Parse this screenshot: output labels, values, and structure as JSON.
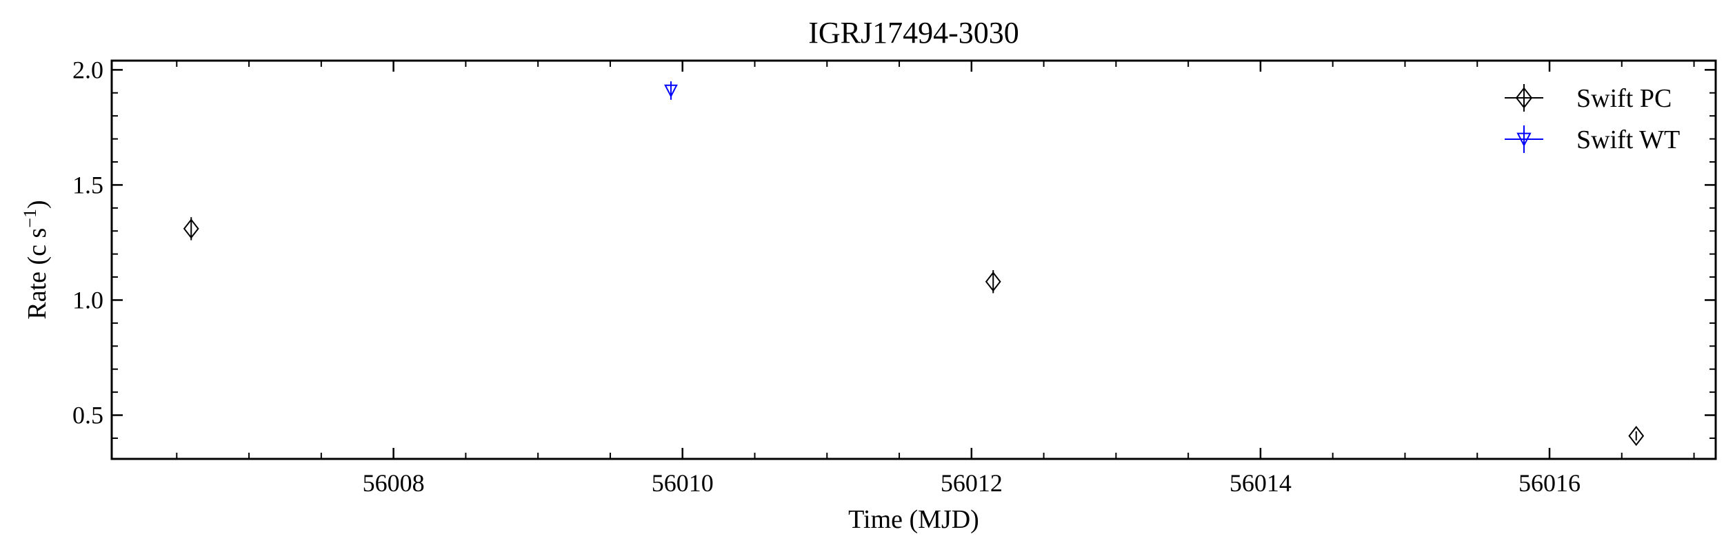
{
  "chart_data": {
    "type": "scatter",
    "title": "IGRJ17494-3030",
    "xlabel": "Time (MJD)",
    "ylabel_main": "Rate (c s",
    "ylabel_sup": "−1",
    "ylabel_close": ")",
    "xlim": [
      56006.05,
      56017.15
    ],
    "ylim": [
      0.31,
      2.04
    ],
    "x_ticks": [
      56008,
      56010,
      56012,
      56014,
      56016
    ],
    "x_tick_labels": [
      "56008",
      "56010",
      "56012",
      "56014",
      "56016"
    ],
    "y_ticks": [
      0.5,
      1.0,
      1.5,
      2.0
    ],
    "y_tick_labels": [
      "0.5",
      "1.0",
      "1.5",
      "2.0"
    ],
    "legend_position": "top-right",
    "series": [
      {
        "name": "Swift PC",
        "marker": "diamond",
        "color": "#000000",
        "points": [
          {
            "x": 56006.6,
            "y": 1.31,
            "yerr": 0.05
          },
          {
            "x": 56012.15,
            "y": 1.08,
            "yerr": 0.05
          },
          {
            "x": 56016.6,
            "y": 0.41,
            "yerr": 0.02
          }
        ]
      },
      {
        "name": "Swift WT",
        "marker": "triangle-down",
        "color": "#0000ff",
        "points": [
          {
            "x": 56009.92,
            "y": 1.91,
            "yerr": 0.04
          }
        ]
      }
    ]
  }
}
